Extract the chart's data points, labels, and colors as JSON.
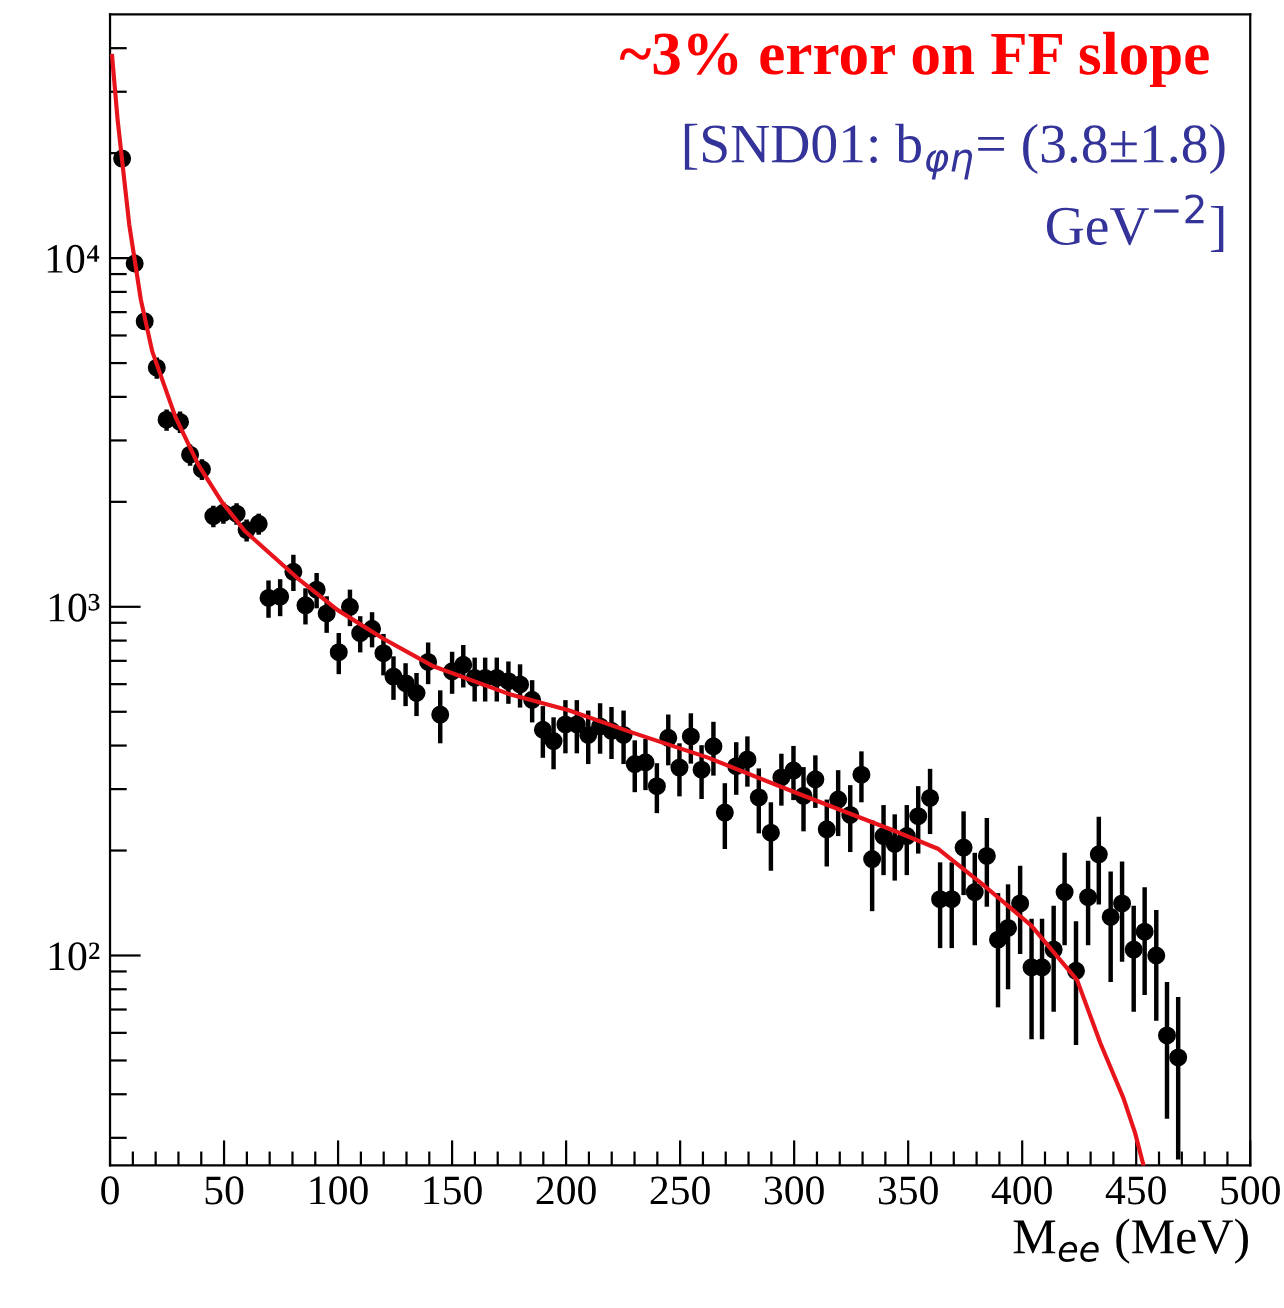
{
  "chart_data": {
    "type": "scatter",
    "title": "~3% error on FF slope",
    "annotations": [
      "[SND01: b$_{φη}$= (3.8±1.8)\nGeV$^{−2}$]"
    ],
    "xlabel": "M$_{ee}$ (MeV)",
    "xlim": [
      0,
      500
    ],
    "xticks": [
      0,
      {
        "value": 10,
        "label": null
      },
      {
        "value": 20,
        "label": null
      },
      {
        "value": 30,
        "label": null
      },
      {
        "value": 40,
        "label": null
      },
      50,
      {
        "value": 60,
        "label": null
      },
      {
        "value": 70,
        "label": null
      },
      {
        "value": 80,
        "label": null
      },
      {
        "value": 90,
        "label": null
      },
      100,
      {
        "value": 110,
        "label": null
      },
      {
        "value": 120,
        "label": null
      },
      {
        "value": 130,
        "label": null
      },
      {
        "value": 140,
        "label": null
      },
      150,
      {
        "value": 160,
        "label": null
      },
      {
        "value": 170,
        "label": null
      },
      {
        "value": 180,
        "label": null
      },
      {
        "value": 190,
        "label": null
      },
      200,
      {
        "value": 210,
        "label": null
      },
      {
        "value": 220,
        "label": null
      },
      {
        "value": 230,
        "label": null
      },
      {
        "value": 240,
        "label": null
      },
      250,
      {
        "value": 260,
        "label": null
      },
      {
        "value": 270,
        "label": null
      },
      {
        "value": 280,
        "label": null
      },
      {
        "value": 290,
        "label": null
      },
      300,
      {
        "value": 310,
        "label": null
      },
      {
        "value": 320,
        "label": null
      },
      {
        "value": 330,
        "label": null
      },
      {
        "value": 340,
        "label": null
      },
      350,
      {
        "value": 360,
        "label": null
      },
      {
        "value": 370,
        "label": null
      },
      {
        "value": 380,
        "label": null
      },
      {
        "value": 390,
        "label": null
      },
      400,
      {
        "value": 410,
        "label": null
      },
      {
        "value": 420,
        "label": null
      },
      {
        "value": 430,
        "label": null
      },
      {
        "value": 440,
        "label": null
      },
      450,
      {
        "value": 460,
        "label": null
      },
      {
        "value": 470,
        "label": null
      },
      {
        "value": 480,
        "label": null
      },
      {
        "value": 490,
        "label": null
      },
      500
    ],
    "ylim": [
      25,
      50000
    ],
    "log": "y",
    "yticks": [
      {
        "value": 30,
        "label": null
      },
      {
        "value": 40,
        "label": null
      },
      {
        "value": 50,
        "label": null
      },
      {
        "value": 60,
        "label": null
      },
      {
        "value": 70,
        "label": null
      },
      {
        "value": 80,
        "label": null
      },
      {
        "value": 90,
        "label": null
      },
      {
        "value": 100,
        "label": "10²"
      },
      {
        "value": 200,
        "label": null
      },
      {
        "value": 300,
        "label": null
      },
      {
        "value": 400,
        "label": null
      },
      {
        "value": 500,
        "label": null
      },
      {
        "value": 600,
        "label": null
      },
      {
        "value": 700,
        "label": null
      },
      {
        "value": 800,
        "label": null
      },
      {
        "value": 900,
        "label": null
      },
      {
        "value": 1000,
        "label": "10³"
      },
      {
        "value": 2000,
        "label": null
      },
      {
        "value": 3000,
        "label": null
      },
      {
        "value": 4000,
        "label": null
      },
      {
        "value": 5000,
        "label": null
      },
      {
        "value": 6000,
        "label": null
      },
      {
        "value": 7000,
        "label": null
      },
      {
        "value": 8000,
        "label": null
      },
      {
        "value": 9000,
        "label": null
      },
      {
        "value": 10000,
        "label": "10⁴"
      },
      {
        "value": 20000,
        "label": null
      },
      {
        "value": 30000,
        "label": null
      },
      {
        "value": 40000,
        "label": null
      }
    ],
    "grid": false,
    "legend": false,
    "series": [
      {
        "color": "#000000",
        "marker": "circle",
        "x": [
          5.3,
          10.8,
          15.2,
          20.5,
          24.8,
          30.7,
          35.1,
          40.3,
          45.3,
          49.7,
          55.5,
          59.9,
          65.2,
          69.5,
          74.6,
          80.4,
          85.7,
          90.6,
          95.0,
          100.3,
          105.2,
          109.7,
          114.9,
          119.9,
          124.3,
          129.6,
          134.4,
          139.5,
          144.8,
          150.0,
          154.9,
          159.9,
          164.5,
          169.6,
          174.7,
          179.8,
          185.1,
          189.8,
          194.5,
          199.7,
          204.7,
          209.7,
          214.9,
          219.9,
          225.2,
          230.1,
          234.8,
          239.8,
          244.8,
          249.7,
          254.7,
          259.4,
          264.6,
          269.6,
          274.6,
          279.5,
          284.5,
          289.8,
          294.4,
          299.7,
          304.1,
          309.3,
          314.3,
          319.3,
          324.6,
          329.5,
          334.2,
          339.2,
          344.1,
          349.4,
          354.4,
          359.6,
          364.0,
          369.1,
          374.3,
          379.2,
          384.5,
          389.4,
          393.8,
          399.1,
          404.1,
          408.7,
          413.8,
          418.6,
          423.6,
          428.9,
          433.6,
          438.8,
          443.8,
          448.9,
          453.7,
          458.8,
          463.5,
          468.4
        ],
        "values": [
          19300,
          9650,
          6590,
          4850,
          3440,
          3390,
          2730,
          2480,
          1820,
          1860,
          1850,
          1660,
          1730,
          1060,
          1070,
          1260,
          1010,
          1120,
          957,
          741,
          1000,
          840,
          865,
          736,
          631,
          604,
          566,
          695,
          491,
          653,
          682,
          625,
          625,
          625,
          612,
          599,
          541,
          444,
          412,
          460,
          460,
          429,
          454,
          441,
          429,
          354,
          358,
          306,
          421,
          346,
          425,
          341,
          398,
          257,
          349,
          365,
          284,
          225,
          324,
          339,
          287,
          320,
          230,
          280,
          253,
          330,
          189,
          220,
          209,
          220,
          251,
          283,
          145,
          145,
          204,
          152,
          193,
          111,
          120,
          141,
          92.5,
          92.5,
          104,
          152,
          90.4,
          147,
          195,
          129,
          141,
          104,
          117,
          100,
          59,
          51
        ],
        "errors": [
          800,
          400,
          260,
          340,
          240,
          240,
          190,
          170,
          130,
          130,
          130,
          120,
          120,
          130,
          130,
          150,
          120,
          130,
          115,
          100,
          120,
          100,
          100,
          100,
          90,
          85,
          80,
          95,
          85,
          90,
          95,
          90,
          90,
          90,
          85,
          85,
          75,
          75,
          70,
          80,
          80,
          75,
          75,
          75,
          75,
          60,
          60,
          50,
          70,
          60,
          70,
          60,
          70,
          55,
          60,
          60,
          60,
          50,
          55,
          60,
          60,
          55,
          50,
          60,
          55,
          55,
          55,
          50,
          45,
          50,
          55,
          60,
          40,
          40,
          55,
          45,
          55,
          40,
          40,
          40,
          35,
          35,
          35,
          45,
          35,
          40,
          55,
          45,
          45,
          35,
          40,
          35,
          25,
          25
        ]
      },
      {
        "type": "line",
        "color": "#e8141c",
        "marker": "none",
        "line_style": "solid",
        "x": [
          0.9,
          3.3,
          8.4,
          13.5,
          18.5,
          28.7,
          38.8,
          49,
          59.1,
          83.4,
          99.7,
          119.9,
          141.8,
          175.7,
          201.1,
          229.4,
          261.9,
          302.5,
          343,
          363.3,
          383.6,
          403.9,
          424.1,
          434.3,
          444.4,
          449.5,
          453.2
        ],
        "values": [
          38000,
          25000,
          12500,
          7600,
          5400,
          3500,
          2550,
          2000,
          1650,
          1190,
          980,
          810,
          675,
          560,
          505,
          435,
          370,
          290,
          229,
          202,
          158,
          122,
          85,
          56,
          39,
          31,
          25
        ]
      }
    ]
  }
}
